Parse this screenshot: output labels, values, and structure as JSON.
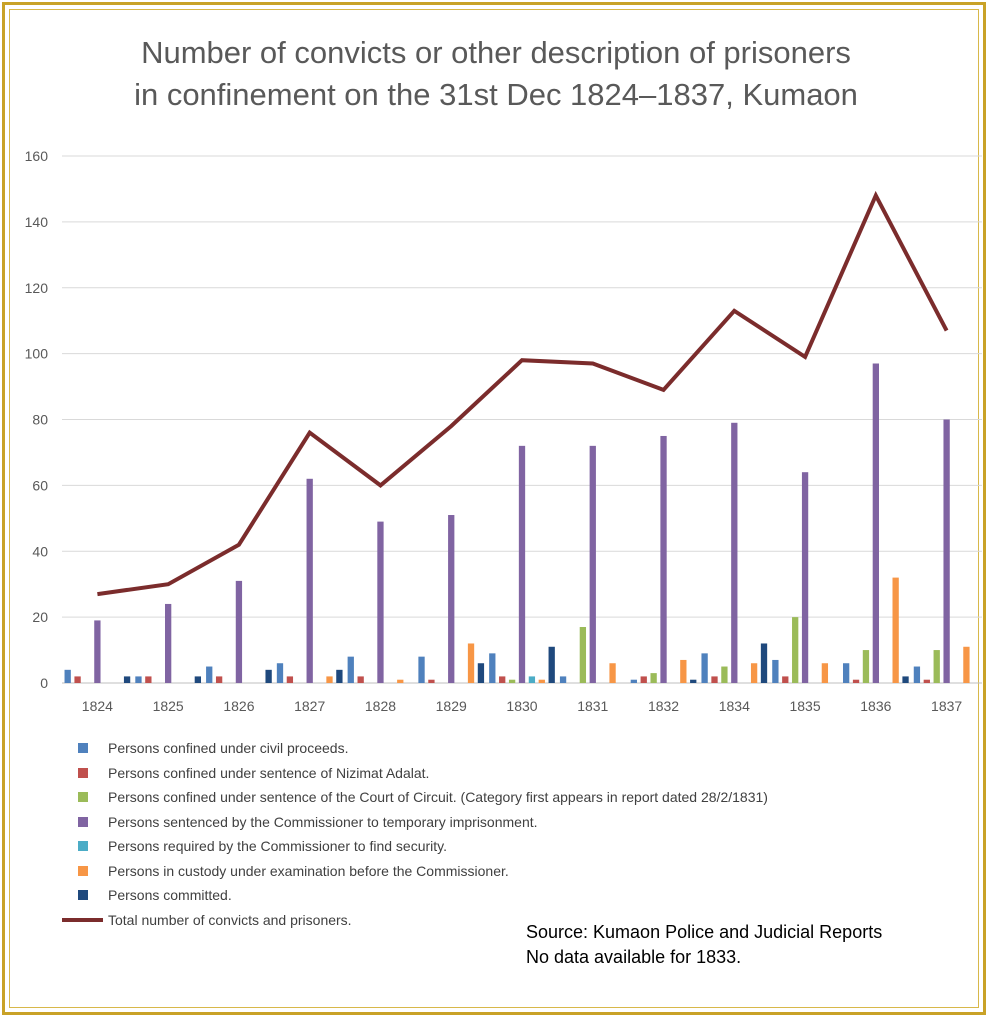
{
  "chart_data": {
    "type": "bar+line",
    "title_lines": [
      "Number of convicts or other description of prisoners",
      "in confinement on the 31st Dec 1824–1837, Kumaon"
    ],
    "categories": [
      "1824",
      "1825",
      "1826",
      "1827",
      "1828",
      "1829",
      "1830",
      "1831",
      "1832",
      "1834",
      "1835",
      "1836",
      "1837"
    ],
    "ylim": [
      0,
      160
    ],
    "yticks": [
      0,
      20,
      40,
      60,
      80,
      100,
      120,
      140,
      160
    ],
    "grid": true,
    "legend_position": "bottom",
    "series": [
      {
        "name": "Persons confined under civil proceeds.",
        "type": "bar",
        "color": "#4f81bd",
        "values": [
          4,
          2,
          5,
          6,
          8,
          8,
          9,
          2,
          1,
          9,
          7,
          6,
          5
        ]
      },
      {
        "name": "Persons confined under sentence of Nizimat Adalat.",
        "type": "bar",
        "color": "#c0504d",
        "values": [
          2,
          2,
          2,
          2,
          2,
          1,
          2,
          0,
          2,
          2,
          2,
          1,
          1
        ]
      },
      {
        "name": "Persons confined under sentence of the Court of Circuit. (Category first appears in report dated 28/2/1831)",
        "type": "bar",
        "color": "#9bbb59",
        "values": [
          0,
          0,
          0,
          0,
          0,
          0,
          1,
          17,
          3,
          5,
          20,
          10,
          10
        ]
      },
      {
        "name": "Persons sentenced by the Commissioner to temporary imprisonment.",
        "type": "bar",
        "color": "#8064a2",
        "values": [
          19,
          24,
          31,
          62,
          49,
          51,
          72,
          72,
          75,
          79,
          64,
          97,
          80
        ]
      },
      {
        "name": "Persons required by the Commissioner to find security.",
        "type": "bar",
        "color": "#4bacc6",
        "values": [
          0,
          0,
          0,
          0,
          0,
          0,
          2,
          0,
          0,
          0,
          0,
          0,
          0
        ]
      },
      {
        "name": "Persons in custody under examination before the Commissioner.",
        "type": "bar",
        "color": "#f79646",
        "values": [
          0,
          0,
          0,
          2,
          1,
          12,
          1,
          6,
          7,
          6,
          6,
          32,
          11
        ]
      },
      {
        "name": "Persons committed.",
        "type": "bar",
        "color": "#1f497d",
        "values": [
          2,
          2,
          4,
          4,
          0,
          6,
          11,
          0,
          1,
          12,
          0,
          2,
          0
        ]
      },
      {
        "name": "Total number of convicts and prisoners.",
        "type": "line",
        "color": "#7b2c2c",
        "values": [
          27,
          30,
          42,
          76,
          60,
          78,
          98,
          97,
          89,
          113,
          99,
          148,
          107
        ]
      }
    ]
  },
  "source_note": {
    "line1": "Source: Kumaon Police and Judicial Reports",
    "line2": "No data available for 1833."
  }
}
